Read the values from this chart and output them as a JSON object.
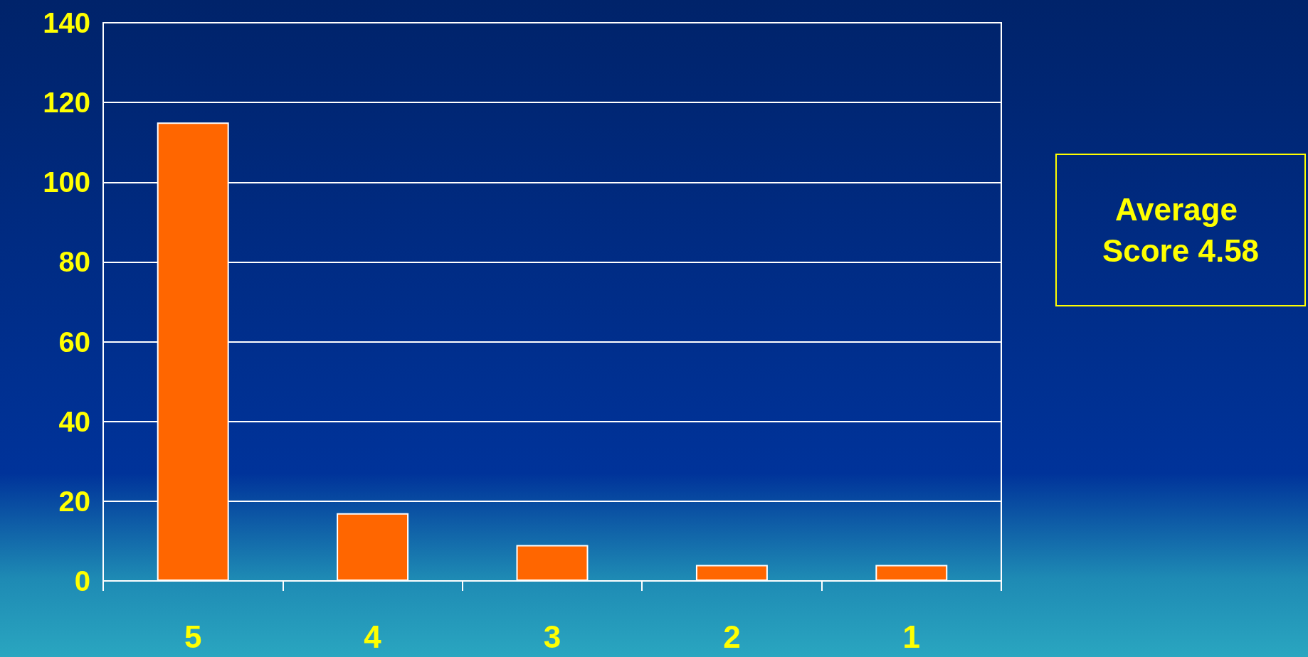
{
  "chart_data": {
    "type": "bar",
    "categories": [
      "5",
      "4",
      "3",
      "2",
      "1"
    ],
    "values": [
      115,
      17,
      9,
      4,
      4
    ],
    "color": "#ff6600",
    "ylim": [
      0,
      140
    ],
    "yticks": [
      0,
      20,
      40,
      60,
      80,
      100,
      120,
      140
    ],
    "grid": "y",
    "annotations": [
      "Average Score 4.58"
    ]
  }
}
